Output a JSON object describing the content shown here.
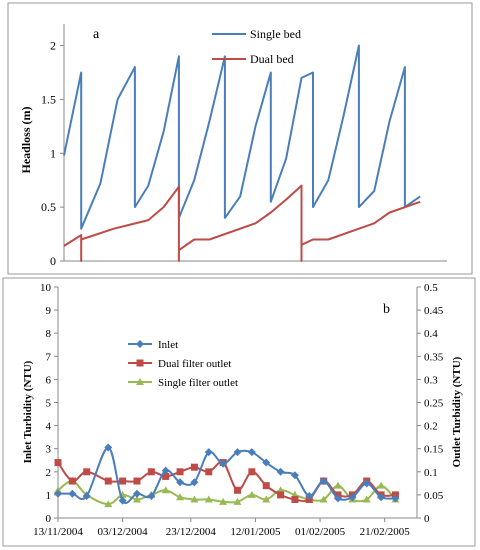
{
  "chart_data": [
    {
      "type": "line",
      "panel_label": "a",
      "ylabel": "Headloss (m)",
      "ylim": [
        0,
        2.2
      ],
      "yticks": [
        "0",
        "0.5",
        "1",
        "1.5",
        "2"
      ],
      "xlim": [
        0,
        100
      ],
      "legend": {
        "position": "top-center"
      },
      "grid": false,
      "series": [
        {
          "name": "Single bed",
          "color": "#4a7ebb",
          "points": [
            [
              0,
              0.98
            ],
            [
              4.5,
              1.75
            ],
            [
              4.5,
              0.3
            ],
            [
              9.5,
              0.72
            ],
            [
              14,
              1.5
            ],
            [
              18.5,
              1.8
            ],
            [
              18.5,
              0.5
            ],
            [
              22,
              0.7
            ],
            [
              26,
              1.2
            ],
            [
              30,
              1.9
            ],
            [
              30,
              0.4
            ],
            [
              34,
              0.75
            ],
            [
              38,
              1.3
            ],
            [
              42,
              1.9
            ],
            [
              42,
              0.4
            ],
            [
              46,
              0.6
            ],
            [
              50,
              1.25
            ],
            [
              54,
              1.75
            ],
            [
              54,
              0.55
            ],
            [
              58,
              0.95
            ],
            [
              62,
              1.7
            ],
            [
              65,
              1.75
            ],
            [
              65,
              0.5
            ],
            [
              69,
              0.75
            ],
            [
              73,
              1.35
            ],
            [
              77,
              2.0
            ],
            [
              77,
              0.5
            ],
            [
              81,
              0.65
            ],
            [
              85,
              1.3
            ],
            [
              89,
              1.8
            ],
            [
              89,
              0.5
            ],
            [
              93,
              0.6
            ]
          ]
        },
        {
          "name": "Dual bed",
          "color": "#be4b48",
          "points": [
            [
              0,
              0.14
            ],
            [
              4.5,
              0.24
            ],
            [
              4.5,
              0
            ],
            [
              4.5,
              0.2
            ],
            [
              13,
              0.3
            ],
            [
              22,
              0.38
            ],
            [
              26,
              0.5
            ],
            [
              30,
              0.69
            ],
            [
              30,
              0
            ],
            [
              30,
              0.1
            ],
            [
              34,
              0.2
            ],
            [
              38,
              0.2
            ],
            [
              50,
              0.35
            ],
            [
              54,
              0.45
            ],
            [
              58,
              0.57
            ],
            [
              62,
              0.7
            ],
            [
              62,
              0
            ],
            [
              62,
              0.15
            ],
            [
              65,
              0.2
            ],
            [
              69,
              0.2
            ],
            [
              77,
              0.3
            ],
            [
              81,
              0.35
            ],
            [
              85,
              0.45
            ],
            [
              93,
              0.55
            ]
          ]
        }
      ]
    },
    {
      "type": "line",
      "panel_label": "b",
      "ylabel": "Inlet Turbidity (NTU)",
      "y2label": "Outlet Turbidity (NTU)",
      "ylim": [
        0,
        10
      ],
      "y2lim": [
        0,
        0.5
      ],
      "yticks": [
        "0",
        "1",
        "2",
        "3",
        "4",
        "5",
        "6",
        "7",
        "8",
        "9",
        "10"
      ],
      "y2ticks": [
        "0",
        "0.05",
        "0.1",
        "0.15",
        "0.2",
        "0.25",
        "0.3",
        "0.35",
        "0.4",
        "0.45",
        "0.5"
      ],
      "xlim": [
        0,
        100
      ],
      "x_tick_positions": [
        0,
        18,
        37,
        55,
        73,
        91
      ],
      "categories": [
        "13/11/2004",
        "03/12/2004",
        "23/12/2004",
        "12/01/2005",
        "01/02/2005",
        "21/02/2005"
      ],
      "legend": {
        "position": "center-left"
      },
      "grid": false,
      "series": [
        {
          "name": "Inlet",
          "color": "#4a7ebb",
          "marker": "diamond",
          "axis": "left",
          "x": [
            0,
            4,
            8,
            14,
            18,
            22,
            26,
            30,
            34,
            38,
            42,
            46,
            50,
            54,
            58,
            62,
            66,
            70,
            74,
            78,
            82,
            86,
            90,
            94
          ],
          "values": [
            1.05,
            1.05,
            0.95,
            3.05,
            0.75,
            1.05,
            0.95,
            2.05,
            1.55,
            1.55,
            2.85,
            2.35,
            2.85,
            2.85,
            2.4,
            2.0,
            1.85,
            0.95,
            1.6,
            0.85,
            0.9,
            1.5,
            0.9,
            0.85
          ]
        },
        {
          "name": "Dual filter outlet",
          "color": "#be4b48",
          "marker": "square",
          "axis": "right",
          "x": [
            0,
            4,
            8,
            14,
            18,
            22,
            26,
            30,
            34,
            38,
            42,
            46,
            50,
            54,
            58,
            62,
            66,
            70,
            74,
            78,
            82,
            86,
            90,
            94
          ],
          "values": [
            0.12,
            0.08,
            0.1,
            0.08,
            0.08,
            0.08,
            0.1,
            0.09,
            0.1,
            0.11,
            0.1,
            0.12,
            0.06,
            0.1,
            0.07,
            0.05,
            0.04,
            0.04,
            0.08,
            0.05,
            0.05,
            0.08,
            0.05,
            0.05
          ]
        },
        {
          "name": "Single filter outlet",
          "color": "#98b954",
          "marker": "triangle",
          "axis": "right",
          "x": [
            0,
            4,
            8,
            14,
            18,
            22,
            26,
            30,
            34,
            38,
            42,
            46,
            50,
            54,
            58,
            62,
            66,
            70,
            74,
            78,
            82,
            86,
            90,
            94
          ],
          "values": [
            0.06,
            0.08,
            0.05,
            0.03,
            0.05,
            0.04,
            0.05,
            0.06,
            0.045,
            0.04,
            0.04,
            0.035,
            0.035,
            0.05,
            0.04,
            0.06,
            0.05,
            0.04,
            0.04,
            0.07,
            0.04,
            0.04,
            0.07,
            0.04
          ]
        }
      ]
    }
  ]
}
